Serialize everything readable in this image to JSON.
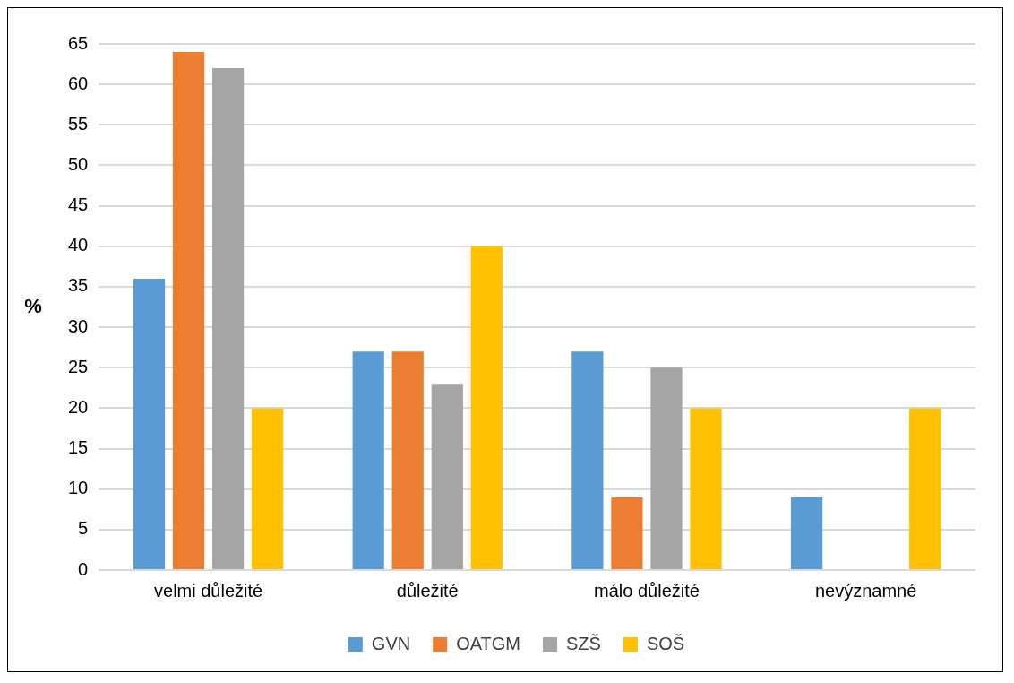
{
  "chart_data": {
    "type": "bar",
    "ylabel": "%",
    "categories": [
      "velmi důležité",
      "důležité",
      "málo důležité",
      "nevýznamné"
    ],
    "series": [
      {
        "name": "GVN",
        "color": "#5b9bd5",
        "values": [
          36,
          27,
          27,
          9
        ]
      },
      {
        "name": "OATGM",
        "color": "#ed7d31",
        "values": [
          64,
          27,
          9,
          0
        ]
      },
      {
        "name": "SZŠ",
        "color": "#a5a5a5",
        "values": [
          62,
          23,
          25,
          0
        ]
      },
      {
        "name": "SOŠ",
        "color": "#ffc000",
        "values": [
          20,
          40,
          20,
          20
        ]
      }
    ],
    "ylim": [
      0,
      65
    ],
    "yticks": [
      0,
      5,
      10,
      15,
      20,
      25,
      30,
      35,
      40,
      45,
      50,
      55,
      60,
      65
    ],
    "grid": "y",
    "legend": "bottom"
  }
}
